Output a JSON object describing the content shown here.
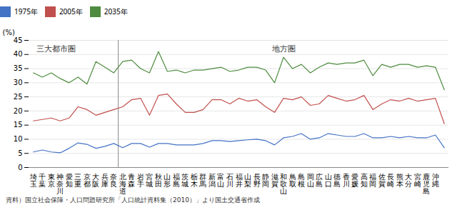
{
  "chart_data": {
    "type": "line",
    "ylabel": "(%)",
    "caption": "資料）国立社会保障・人口問題研究所「人口統計資料集（2010）」より国土交通省作成",
    "categories": [
      "埼玉",
      "千葉",
      "東京",
      "神奈川",
      "愛知",
      "三重",
      "京都",
      "大阪",
      "兵庫",
      "奈良",
      "北海道",
      "青森",
      "岩手",
      "宮城",
      "秋田",
      "山形",
      "福島",
      "茨城",
      "栃木",
      "群馬",
      "新潟",
      "富山",
      "石川",
      "福井",
      "山梨",
      "長野",
      "静岡",
      "滋賀",
      "和歌山",
      "鳥取",
      "島根",
      "岡山",
      "広島",
      "山口",
      "徳島",
      "香川",
      "愛媛",
      "高知",
      "福岡",
      "佐賀",
      "長崎",
      "熊本",
      "大分",
      "宮崎",
      "鹿児島",
      "沖縄",
      null
    ],
    "series": [
      {
        "name": "1975年",
        "color": "#4472c4",
        "values": [
          5.5,
          6.2,
          5.5,
          5.2,
          6.8,
          8.7,
          8.2,
          6.8,
          7.5,
          8.5,
          7.0,
          8.5,
          8.5,
          7.2,
          8.5,
          8.5,
          8.0,
          8.0,
          8.0,
          8.5,
          9.5,
          9.5,
          9.2,
          9.5,
          9.8,
          10.0,
          9.5,
          8.0,
          10.5,
          11.0,
          12.0,
          10.0,
          10.5,
          12.0,
          11.5,
          11.0,
          11.0,
          12.0,
          10.5,
          10.5,
          11.0,
          10.5,
          11.0,
          10.5,
          10.5,
          11.5,
          7.0
        ]
      },
      {
        "name": "2005年",
        "color": "#c0504d",
        "values": [
          16.5,
          17.0,
          17.5,
          16.5,
          17.5,
          21.5,
          20.5,
          18.5,
          19.5,
          20.5,
          21.5,
          24.0,
          24.5,
          18.5,
          25.5,
          26.0,
          22.5,
          19.5,
          19.5,
          20.5,
          24.0,
          24.0,
          22.5,
          24.5,
          23.5,
          24.0,
          21.5,
          19.5,
          24.5,
          24.0,
          25.0,
          22.0,
          22.5,
          25.5,
          24.5,
          23.5,
          24.0,
          25.5,
          20.5,
          22.5,
          24.0,
          23.5,
          24.5,
          23.5,
          24.0,
          24.5,
          15.5
        ]
      },
      {
        "name": "2035年",
        "color": "#4e8b3f",
        "values": [
          33.5,
          32.0,
          33.5,
          31.5,
          30.0,
          32.0,
          29.5,
          37.5,
          35.5,
          33.5,
          37.5,
          38.0,
          35.0,
          33.5,
          41.0,
          34.0,
          34.5,
          33.5,
          34.5,
          34.5,
          35.0,
          35.5,
          34.0,
          34.5,
          35.5,
          35.5,
          34.5,
          30.0,
          39.0,
          35.0,
          36.5,
          33.5,
          35.5,
          37.0,
          36.5,
          37.0,
          37.0,
          38.0,
          32.5,
          36.5,
          35.5,
          36.5,
          36.5,
          35.5,
          36.0,
          35.5,
          27.5
        ]
      }
    ],
    "annotations": [
      {
        "text": "三大都市圏",
        "x": 2.5,
        "y": 43
      },
      {
        "text": "地方圏",
        "x": 28.0,
        "y": 43
      }
    ],
    "divider": 9.5,
    "ylim": [
      0,
      45
    ],
    "yticks": [
      0,
      5,
      10,
      15,
      20,
      25,
      30,
      35,
      40,
      45
    ],
    "grid": true,
    "legend": "top"
  }
}
